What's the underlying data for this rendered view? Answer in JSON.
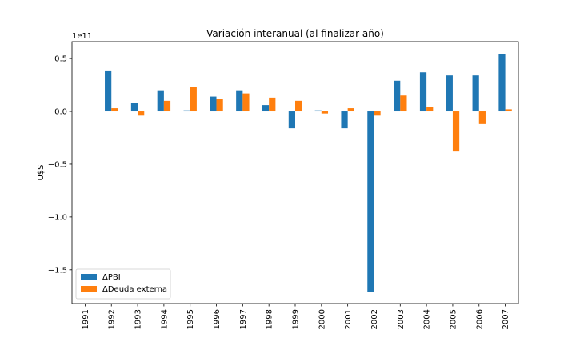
{
  "chart_data": {
    "type": "bar",
    "title": "Variación interanual (al finalizar año)",
    "xlabel": "",
    "ylabel": "U$S",
    "y_offset_text": "1e11",
    "ylim": [
      -1.82,
      0.66
    ],
    "y_ticks": [
      -1.5,
      -1.0,
      -0.5,
      0.0,
      0.5
    ],
    "y_tick_labels": [
      "−1.5",
      "−1.0",
      "−0.5",
      "0.0",
      "0.5"
    ],
    "categories": [
      "1991",
      "1992",
      "1993",
      "1994",
      "1995",
      "1996",
      "1997",
      "1998",
      "1999",
      "2000",
      "2001",
      "2002",
      "2003",
      "2004",
      "2005",
      "2006",
      "2007"
    ],
    "series": [
      {
        "name": "ΔPBI",
        "color": "#1f77b4",
        "values": [
          null,
          0.38,
          0.08,
          0.2,
          0.01,
          0.14,
          0.2,
          0.06,
          -0.16,
          0.01,
          -0.16,
          -1.71,
          0.29,
          0.37,
          0.34,
          0.34,
          0.54
        ]
      },
      {
        "name": "ΔDeuda externa",
        "color": "#ff7f0e",
        "values": [
          null,
          0.03,
          -0.04,
          0.1,
          0.23,
          0.12,
          0.17,
          0.13,
          0.1,
          -0.02,
          0.03,
          -0.04,
          0.15,
          0.04,
          -0.38,
          -0.12,
          0.02
        ]
      }
    ],
    "legend_position": "lower-left",
    "grid": false
  }
}
